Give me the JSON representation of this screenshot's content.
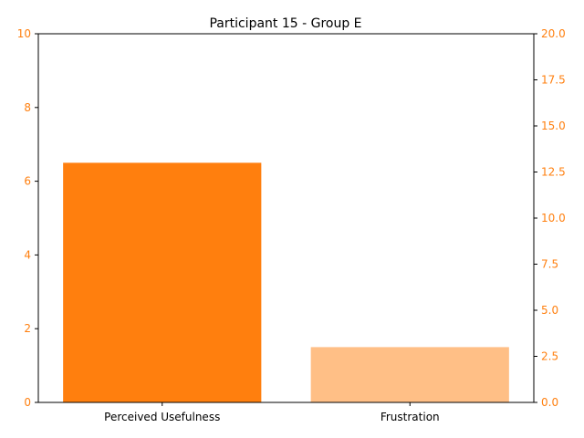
{
  "chart_data": {
    "type": "bar",
    "title": "Participant 15 - Group E",
    "xlabel": "",
    "ylabel": "",
    "categories": [
      "Perceived Usefulness",
      "Frustration"
    ],
    "bars": [
      {
        "category": "Perceived Usefulness",
        "value": 6.5,
        "axis": "left",
        "color": "#ff7f0e"
      },
      {
        "category": "Frustration",
        "value": 3.0,
        "axis": "right",
        "color": "#ffbf86"
      }
    ],
    "y_left": {
      "range": [
        0,
        10
      ],
      "ticks": [
        "0",
        "2",
        "4",
        "6",
        "8",
        "10"
      ],
      "tick_color": "#ff7f0e"
    },
    "y_right": {
      "range": [
        0,
        20
      ],
      "ticks": [
        "0.0",
        "2.5",
        "5.0",
        "7.5",
        "10.0",
        "12.5",
        "15.0",
        "17.5",
        "20.0"
      ],
      "tick_color": "#ff7f0e"
    },
    "grid": false,
    "legend": "none"
  }
}
